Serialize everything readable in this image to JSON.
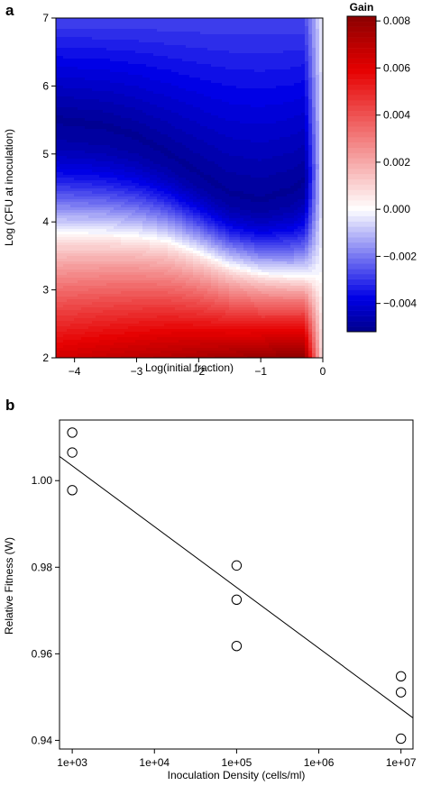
{
  "chart_data": [
    {
      "panel": "a",
      "type": "heatmap",
      "xlabel": "Log(initial fraction)",
      "ylabel": "Log (CFU at inoculation)",
      "xlim": [
        -4.3,
        0
      ],
      "ylim": [
        2,
        7
      ],
      "x_ticks": [
        -4,
        -3,
        -2,
        -1,
        0
      ],
      "y_ticks": [
        2,
        3,
        4,
        5,
        6,
        7
      ],
      "colorbar": {
        "title": "Gain",
        "range": [
          -0.0052,
          0.0082
        ],
        "ticks": [
          -0.004,
          -0.002,
          0.0,
          0.002,
          0.004,
          0.006,
          0.008
        ],
        "tick_labels": [
          "−0.004",
          "−0.002",
          "0.000",
          "0.002",
          "0.004",
          "0.006",
          "0.008"
        ],
        "neg_color": "#00008b",
        "mid_color": "#ffffff",
        "pos_color": "#8b0000"
      },
      "zero_contour": [
        [
          -4.3,
          3.83
        ],
        [
          -3.5,
          3.82
        ],
        [
          -3.0,
          3.79
        ],
        [
          -2.5,
          3.72
        ],
        [
          -2.0,
          3.55
        ],
        [
          -1.5,
          3.35
        ],
        [
          -1.0,
          3.24
        ],
        [
          -0.5,
          3.2
        ],
        [
          0.0,
          3.18
        ]
      ],
      "blue_valley_y": [
        [
          -4.3,
          5.55
        ],
        [
          -3.5,
          5.45
        ],
        [
          -3.0,
          5.3
        ],
        [
          -2.5,
          5.05
        ],
        [
          -2.0,
          4.75
        ],
        [
          -1.5,
          4.45
        ],
        [
          -1.0,
          4.35
        ],
        [
          -0.5,
          4.5
        ],
        [
          0.0,
          4.9
        ]
      ]
    },
    {
      "panel": "b",
      "type": "scatter",
      "xlabel": "Inoculation Density (cells/ml)",
      "ylabel": "Relative Fitness (W)",
      "x_scale": "log",
      "xlim": [
        700,
        14000000
      ],
      "ylim": [
        0.938,
        1.014
      ],
      "x_ticks": [
        1000,
        10000,
        100000,
        1000000,
        10000000
      ],
      "x_tick_labels": [
        "1e+03",
        "1e+04",
        "1e+05",
        "1e+06",
        "1e+07"
      ],
      "y_ticks": [
        0.94,
        0.96,
        0.98,
        1.0
      ],
      "y_tick_labels": [
        "0.94",
        "0.96",
        "0.98",
        "1.00"
      ],
      "points": [
        {
          "x": 1000,
          "y": 1.0111
        },
        {
          "x": 1000,
          "y": 1.0065
        },
        {
          "x": 1000,
          "y": 0.9978
        },
        {
          "x": 100000,
          "y": 0.9804
        },
        {
          "x": 100000,
          "y": 0.9725
        },
        {
          "x": 100000,
          "y": 0.9618
        },
        {
          "x": 10000000,
          "y": 0.9548
        },
        {
          "x": 10000000,
          "y": 0.9511
        },
        {
          "x": 10000000,
          "y": 0.9404
        }
      ],
      "fit_line": [
        {
          "x": 700,
          "y": 1.0056
        },
        {
          "x": 14000000,
          "y": 0.9452
        }
      ]
    }
  ],
  "labels": {
    "panel_a": "a",
    "panel_b": "b"
  }
}
